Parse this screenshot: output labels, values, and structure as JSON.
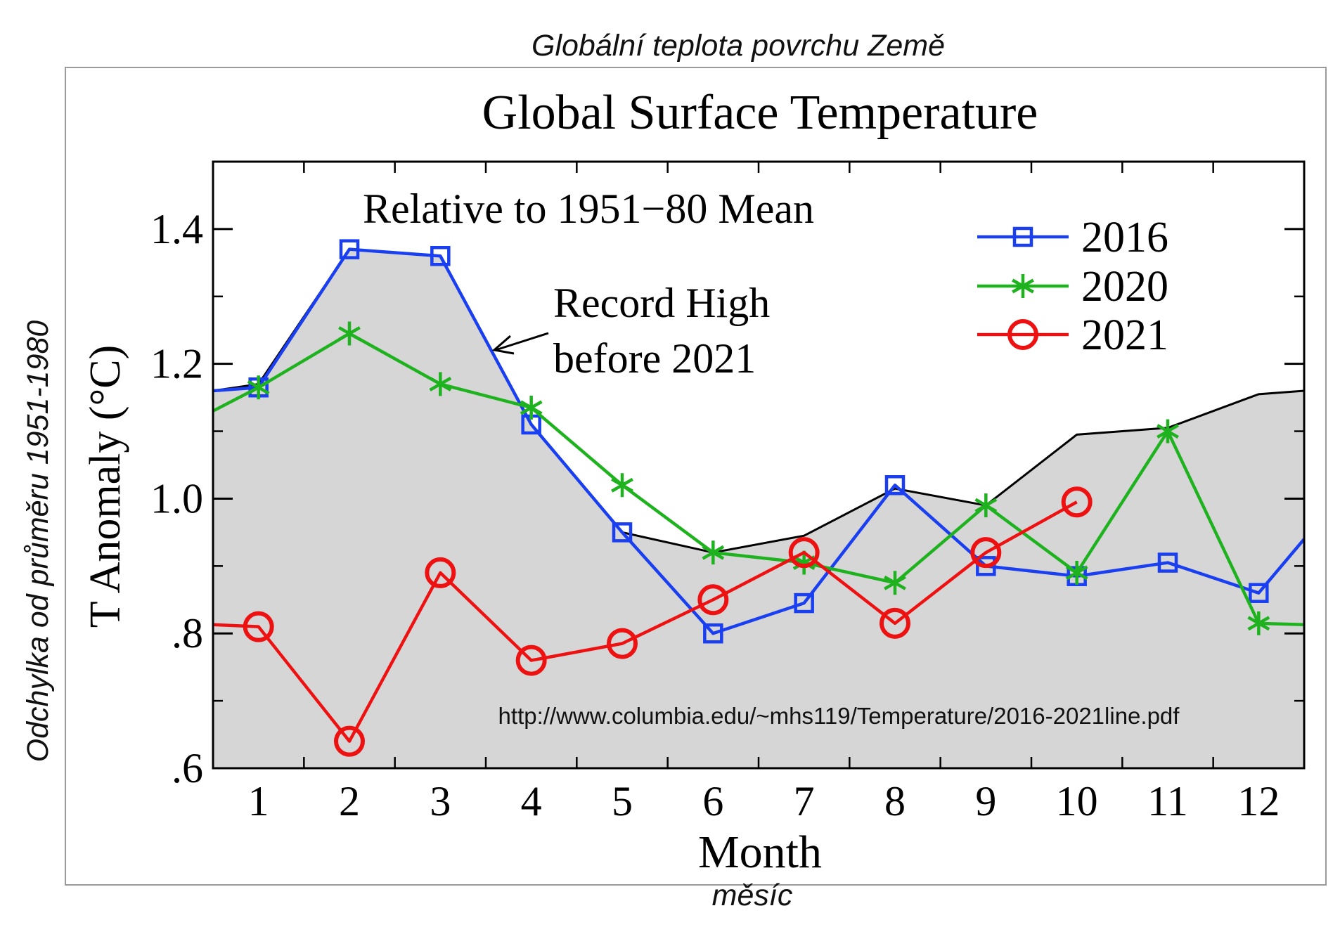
{
  "cz": {
    "title": "Globální teplota povrchu Země",
    "ylabel": "Odchylka od průměru 1951-1980",
    "xlabel": "měsíc"
  },
  "chart_data": {
    "type": "line",
    "title": "Global Surface Temperature",
    "subtitle": "Relative to 1951−80 Mean",
    "xlabel": "Month",
    "ylabel": "T Anomaly (°C)",
    "xlim": [
      0.5,
      12.5
    ],
    "ylim": [
      0.6,
      1.5
    ],
    "x_ticks": [
      1,
      2,
      3,
      4,
      5,
      6,
      7,
      8,
      9,
      10,
      11,
      12
    ],
    "y_ticks": [
      {
        "value": 0.6,
        "label": ".6"
      },
      {
        "value": 0.8,
        "label": ".8"
      },
      {
        "value": 1.0,
        "label": "1.0"
      },
      {
        "value": 1.2,
        "label": "1.2"
      },
      {
        "value": 1.4,
        "label": "1.4"
      }
    ],
    "record_high": {
      "label_line1": "Record High",
      "label_line2": "before 2021",
      "x": [
        0.5,
        1,
        2,
        3,
        4,
        5,
        6,
        7,
        8,
        9,
        10,
        11,
        12,
        12.5
      ],
      "y": [
        1.16,
        1.17,
        1.37,
        1.36,
        1.11,
        0.95,
        0.92,
        0.945,
        1.015,
        0.99,
        1.095,
        1.105,
        1.155,
        1.16
      ],
      "color": "#000000",
      "fill": "#d6d6d6"
    },
    "series": [
      {
        "name": "2016",
        "color": "#1a3ff0",
        "marker": "square",
        "x": [
          1,
          2,
          3,
          4,
          5,
          6,
          7,
          8,
          9,
          10,
          11,
          12
        ],
        "y": [
          1.165,
          1.37,
          1.36,
          1.11,
          0.95,
          0.8,
          0.845,
          1.02,
          0.9,
          0.885,
          0.905,
          0.86
        ],
        "lead_in": 1.16,
        "lead_out": 0.94
      },
      {
        "name": "2020",
        "color": "#1fb21f",
        "marker": "asterisk",
        "x": [
          1,
          2,
          3,
          4,
          5,
          6,
          7,
          8,
          9,
          10,
          11,
          12
        ],
        "y": [
          1.165,
          1.245,
          1.17,
          1.135,
          1.02,
          0.92,
          0.905,
          0.875,
          0.99,
          0.89,
          1.1,
          0.815
        ],
        "lead_in": 1.13,
        "lead_out": 0.813
      },
      {
        "name": "2021",
        "color": "#ee1111",
        "marker": "circle",
        "x": [
          1,
          2,
          3,
          4,
          5,
          6,
          7,
          8,
          9,
          10
        ],
        "y": [
          0.81,
          0.64,
          0.89,
          0.76,
          0.785,
          0.85,
          0.92,
          0.815,
          0.92,
          0.995
        ],
        "lead_in": 0.813
      }
    ],
    "source_url": "http://www.columbia.edu/~mhs119/Temperature/2016-2021line.pdf",
    "legend_position": "top-right"
  }
}
